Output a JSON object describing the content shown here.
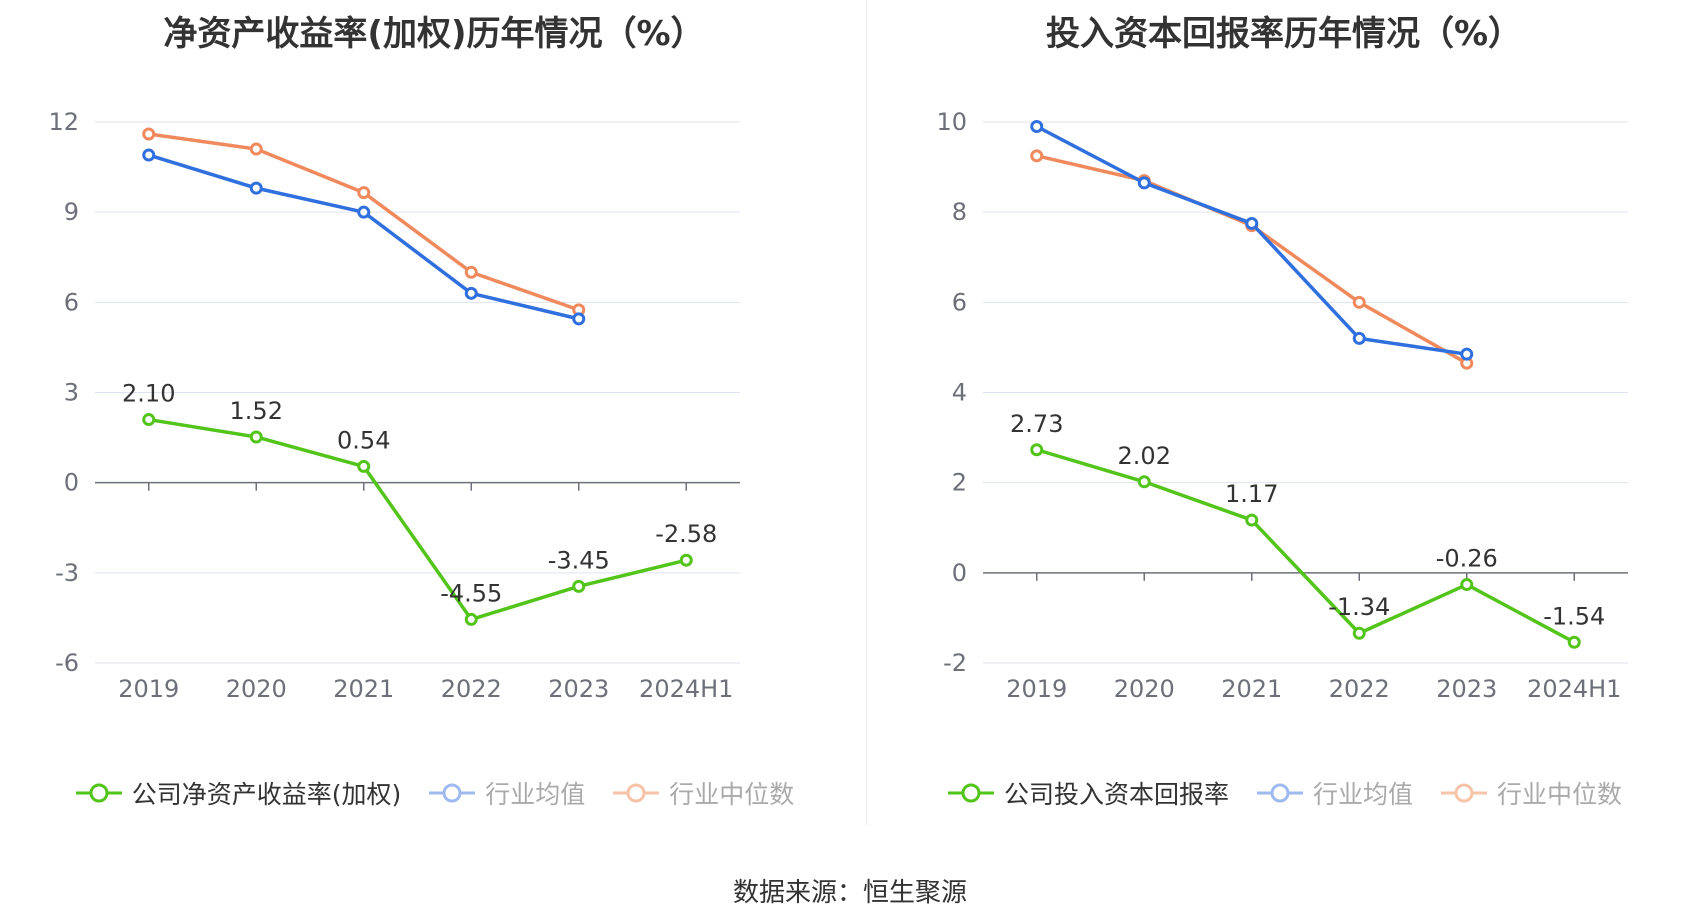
{
  "source_text": "数据来源：恒生聚源",
  "colors": {
    "company": "#52c41a",
    "avg": "#2f6fde",
    "median": "#f08a5d",
    "grid": "#dfe3ef",
    "axis": "#6e7079",
    "tick_label": "#6e7079"
  },
  "chart_data": [
    {
      "type": "line",
      "title": "净资产收益率(加权)历年情况（%）",
      "categories": [
        "2019",
        "2020",
        "2021",
        "2022",
        "2023",
        "2024H1"
      ],
      "ylim": [
        -6,
        12
      ],
      "yticks": [
        12,
        9,
        6,
        3,
        0,
        -3,
        -6
      ],
      "grid": true,
      "legend_position": "bottom",
      "series": [
        {
          "name": "公司净资产收益率(加权)",
          "key": "company",
          "values": [
            2.1,
            1.52,
            0.54,
            -4.55,
            -3.45,
            -2.58
          ],
          "labels": [
            "2.10",
            "1.52",
            "0.54",
            "-4.55",
            "-3.45",
            "-2.58"
          ],
          "show_labels": true
        },
        {
          "name": "行业均值",
          "key": "avg",
          "values": [
            10.9,
            9.8,
            9.0,
            6.3,
            5.45,
            null
          ],
          "show_labels": false
        },
        {
          "name": "行业中位数",
          "key": "median",
          "values": [
            11.6,
            11.1,
            9.65,
            7.0,
            5.75,
            null
          ],
          "show_labels": false
        }
      ]
    },
    {
      "type": "line",
      "title": "投入资本回报率历年情况（%）",
      "categories": [
        "2019",
        "2020",
        "2021",
        "2022",
        "2023",
        "2024H1"
      ],
      "ylim": [
        -2,
        10
      ],
      "yticks": [
        10,
        8,
        6,
        4,
        2,
        0,
        -2
      ],
      "grid": true,
      "legend_position": "bottom",
      "series": [
        {
          "name": "公司投入资本回报率",
          "key": "company",
          "values": [
            2.73,
            2.02,
            1.17,
            -1.34,
            -0.26,
            -1.54
          ],
          "labels": [
            "2.73",
            "2.02",
            "1.17",
            "-1.34",
            "-0.26",
            "-1.54"
          ],
          "show_labels": true
        },
        {
          "name": "行业均值",
          "key": "avg",
          "values": [
            9.9,
            8.65,
            7.75,
            5.2,
            4.85,
            null
          ],
          "show_labels": false
        },
        {
          "name": "行业中位数",
          "key": "median",
          "values": [
            9.25,
            8.7,
            7.7,
            6.0,
            4.65,
            null
          ],
          "show_labels": false
        }
      ]
    }
  ]
}
